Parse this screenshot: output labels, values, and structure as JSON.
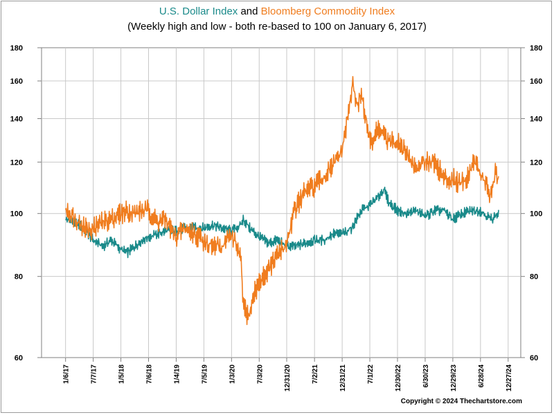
{
  "chart_data": {
    "type": "line",
    "title_parts": [
      {
        "text": "U.S. Dollar Index",
        "color": "#1a8a8a"
      },
      {
        "text": " and ",
        "color": "#000000"
      },
      {
        "text": "Bloomberg Commodity Index",
        "color": "#f07d1f"
      }
    ],
    "subtitle": "(Weekly high and low - both re-based to 100 on January 6, 2017)",
    "y_scale": "log",
    "ylim": [
      60,
      180
    ],
    "y_ticks": [
      "60",
      "80",
      "100",
      "120",
      "140",
      "160",
      "180"
    ],
    "x_tick_labels": [
      "1/6/17",
      "7/7/17",
      "1/5/18",
      "7/6/18",
      "1/4/19",
      "7/5/19",
      "1/3/20",
      "7/3/20",
      "12/31/20",
      "7/2/21",
      "12/31/21",
      "7/1/22",
      "12/30/22",
      "6/30/23",
      "12/29/23",
      "6/28/24",
      "12/27/24"
    ],
    "x_range": [
      "2016-08-01",
      "2025-03-20"
    ],
    "grid": true,
    "series": [
      {
        "name": "U.S. Dollar Index",
        "color": "#1a8a8a",
        "x": [
          "2017-01-06",
          "2017-03-03",
          "2017-05-05",
          "2017-07-07",
          "2017-09-08",
          "2017-11-03",
          "2018-01-05",
          "2018-02-16",
          "2018-04-06",
          "2018-05-25",
          "2018-07-06",
          "2018-08-31",
          "2018-10-26",
          "2019-01-04",
          "2019-03-01",
          "2019-05-03",
          "2019-07-05",
          "2019-08-30",
          "2019-11-01",
          "2020-01-03",
          "2020-03-06",
          "2020-03-20",
          "2020-05-01",
          "2020-07-03",
          "2020-09-04",
          "2020-10-30",
          "2020-12-31",
          "2021-02-26",
          "2021-04-30",
          "2021-07-02",
          "2021-09-03",
          "2021-10-29",
          "2021-12-31",
          "2022-03-04",
          "2022-05-06",
          "2022-07-01",
          "2022-08-26",
          "2022-09-30",
          "2022-11-04",
          "2022-12-30",
          "2023-03-03",
          "2023-05-05",
          "2023-06-30",
          "2023-09-01",
          "2023-11-03",
          "2023-12-29",
          "2024-03-01",
          "2024-05-03",
          "2024-06-28",
          "2024-09-06",
          "2024-10-25"
        ],
        "values": [
          98,
          97,
          95,
          91,
          89,
          91,
          88,
          87,
          89,
          91,
          92,
          93,
          94,
          94,
          95,
          95,
          95,
          96,
          95,
          94,
          96,
          98,
          95,
          92,
          90,
          91,
          89,
          89,
          90,
          91,
          91,
          93,
          93,
          95,
          101,
          103,
          106,
          109,
          104,
          101,
          100,
          101,
          99,
          101,
          101,
          98,
          100,
          101,
          101,
          98,
          100
        ]
      },
      {
        "name": "Bloomberg Commodity Index",
        "color": "#f07d1f",
        "x": [
          "2017-01-06",
          "2017-02-10",
          "2017-04-07",
          "2017-06-09",
          "2017-07-07",
          "2017-09-08",
          "2017-11-03",
          "2018-01-05",
          "2018-02-16",
          "2018-04-06",
          "2018-05-25",
          "2018-07-06",
          "2018-08-31",
          "2018-10-26",
          "2018-12-28",
          "2019-03-01",
          "2019-05-03",
          "2019-07-05",
          "2019-08-30",
          "2019-11-01",
          "2020-01-03",
          "2020-02-14",
          "2020-03-06",
          "2020-03-20",
          "2020-04-24",
          "2020-06-05",
          "2020-07-31",
          "2020-09-04",
          "2020-10-30",
          "2020-12-31",
          "2021-02-26",
          "2021-04-30",
          "2021-07-02",
          "2021-09-03",
          "2021-10-29",
          "2021-12-31",
          "2022-02-04",
          "2022-03-11",
          "2022-04-08",
          "2022-05-06",
          "2022-06-10",
          "2022-07-08",
          "2022-08-26",
          "2022-09-30",
          "2022-11-04",
          "2022-12-30",
          "2023-02-03",
          "2023-03-31",
          "2023-05-05",
          "2023-06-30",
          "2023-09-01",
          "2023-11-03",
          "2023-12-29",
          "2024-02-02",
          "2024-03-29",
          "2024-05-17",
          "2024-06-28",
          "2024-08-02",
          "2024-09-06",
          "2024-10-04",
          "2024-10-25"
        ],
        "values": [
          101,
          100,
          97,
          94,
          95,
          97,
          98,
          100,
          101,
          100,
          101,
          101,
          97,
          98,
          92,
          95,
          93,
          91,
          89,
          89,
          93,
          88,
          84,
          72,
          69,
          76,
          80,
          82,
          86,
          90,
          102,
          108,
          110,
          114,
          118,
          125,
          140,
          158,
          147,
          152,
          138,
          128,
          135,
          132,
          128,
          130,
          126,
          120,
          117,
          121,
          120,
          113,
          113,
          112,
          113,
          121,
          115,
          111,
          106,
          115,
          112
        ]
      }
    ]
  },
  "copyright": "Copyright © 2024 Thechartstore.com"
}
